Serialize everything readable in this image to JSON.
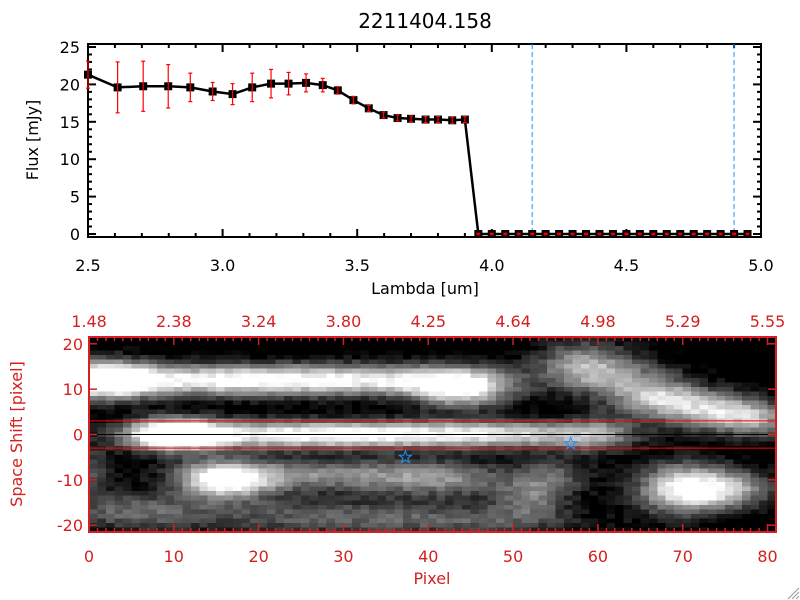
{
  "chart_data": [
    {
      "type": "line",
      "title": "2211404.158",
      "xlabel": "Lambda [um]",
      "ylabel": "Flux [mJy]",
      "xlim": [
        2.5,
        5.0
      ],
      "ylim": [
        -0.4,
        25.4
      ],
      "xticks": [
        "2.5",
        "3.0",
        "3.5",
        "4.0",
        "4.5",
        "5.0"
      ],
      "yticks": [
        "0",
        "5",
        "10",
        "15",
        "20",
        "25"
      ],
      "series": [
        {
          "name": "flux",
          "color": "#000000",
          "errcolor": "#ff0000",
          "x": [
            2.5,
            2.61,
            2.705,
            2.798,
            2.88,
            2.963,
            3.037,
            3.11,
            3.18,
            3.245,
            3.31,
            3.372,
            3.428,
            3.486,
            3.543,
            3.598,
            3.65,
            3.7,
            3.754,
            3.8,
            3.853,
            3.9,
            3.95,
            4.0,
            4.05,
            4.1,
            4.15,
            4.2,
            4.25,
            4.3,
            4.35,
            4.4,
            4.45,
            4.5,
            4.55,
            4.6,
            4.65,
            4.7,
            4.75,
            4.8,
            4.85,
            4.9,
            4.95
          ],
          "y": [
            21.3,
            19.6,
            19.75,
            19.75,
            19.6,
            19.05,
            18.7,
            19.6,
            20.1,
            20.1,
            20.2,
            19.9,
            19.2,
            17.9,
            16.8,
            15.9,
            15.5,
            15.4,
            15.3,
            15.3,
            15.2,
            15.3,
            0,
            0,
            0,
            0,
            0,
            0,
            0,
            0,
            0,
            0,
            0,
            0,
            0,
            0,
            0,
            0,
            0,
            0,
            0,
            0,
            0
          ],
          "err": [
            1.8,
            3.4,
            3.35,
            2.9,
            1.9,
            1.2,
            1.4,
            1.9,
            1.9,
            1.5,
            1.2,
            0.9,
            0.5,
            0.5,
            0.4,
            0.4,
            0.4,
            0.4,
            0.4,
            0.4,
            0.4,
            0.4,
            0.1,
            0.1,
            0.1,
            0.1,
            0.1,
            0.1,
            0.1,
            0.1,
            0.1,
            0.1,
            0.1,
            0.1,
            0.1,
            0.1,
            0.1,
            0.1,
            0.1,
            0.1,
            0.1,
            0.1,
            0.1
          ]
        }
      ],
      "vlines": [
        {
          "x": 4.15,
          "color": "#1e90ff",
          "style": "dashed"
        },
        {
          "x": 4.9,
          "color": "#1e90ff",
          "style": "dashed"
        }
      ]
    },
    {
      "type": "heatmap",
      "xlabel": "Pixel",
      "ylabel": "Space Shift [pixel]",
      "xlim": [
        0,
        81
      ],
      "ylim": [
        -21.5,
        21.5
      ],
      "xticks": [
        "0",
        "10",
        "20",
        "30",
        "40",
        "50",
        "60",
        "70",
        "80"
      ],
      "yticks": [
        "20",
        "10",
        "0",
        "-10",
        "-20"
      ],
      "top_xticks": [
        "1.48",
        "2.38",
        "3.24",
        "3.80",
        "4.25",
        "4.64",
        "4.98",
        "5.29",
        "5.55"
      ],
      "axis_color": "#d42020",
      "colormap": "grayscale",
      "hlines": [
        {
          "y": 3,
          "color": "#ff0000"
        },
        {
          "y": -3,
          "color": "#ff0000"
        },
        {
          "y": 0,
          "color": "#000000"
        }
      ],
      "markers": [
        {
          "x": 37.3,
          "y": -5,
          "symbol": "star",
          "color": "#1e90ff"
        },
        {
          "x": 56.8,
          "y": -2,
          "symbol": "star",
          "color": "#1e90ff"
        }
      ],
      "blobs": [
        [
          2,
          12,
          4,
          3,
          0.9
        ],
        [
          12,
          12,
          10,
          2.5,
          0.55
        ],
        [
          25,
          12,
          10,
          2.5,
          0.5
        ],
        [
          38,
          12,
          8,
          2.5,
          0.45
        ],
        [
          44,
          10,
          4,
          3,
          0.7
        ],
        [
          58,
          16,
          4,
          4,
          0.4
        ],
        [
          62,
          13,
          5,
          3,
          0.35
        ],
        [
          67,
          8,
          4,
          3,
          0.6
        ],
        [
          74,
          5,
          4,
          3,
          0.6
        ],
        [
          79,
          3,
          3,
          3,
          0.4
        ],
        [
          10,
          0,
          4,
          2.5,
          1.0
        ],
        [
          22,
          0,
          10,
          2.2,
          0.65
        ],
        [
          38,
          0,
          10,
          2.2,
          0.55
        ],
        [
          52,
          0,
          8,
          2.2,
          0.45
        ],
        [
          60,
          0,
          3,
          3,
          0.3
        ],
        [
          16,
          -10,
          4,
          3,
          0.8
        ],
        [
          28,
          -9,
          10,
          2.5,
          0.45
        ],
        [
          42,
          -10,
          6,
          3,
          0.35
        ],
        [
          52,
          -14,
          3,
          3,
          0.35
        ],
        [
          55,
          -9,
          3,
          3,
          0.3
        ],
        [
          70,
          -12,
          4,
          4,
          0.75
        ],
        [
          76,
          -12,
          4,
          3,
          0.45
        ],
        [
          5,
          -17,
          6,
          3,
          0.35
        ],
        [
          25,
          -18,
          10,
          3,
          0.3
        ],
        [
          45,
          -19,
          10,
          2.5,
          0.3
        ],
        [
          0,
          -8,
          2,
          4,
          0.3
        ]
      ]
    }
  ]
}
